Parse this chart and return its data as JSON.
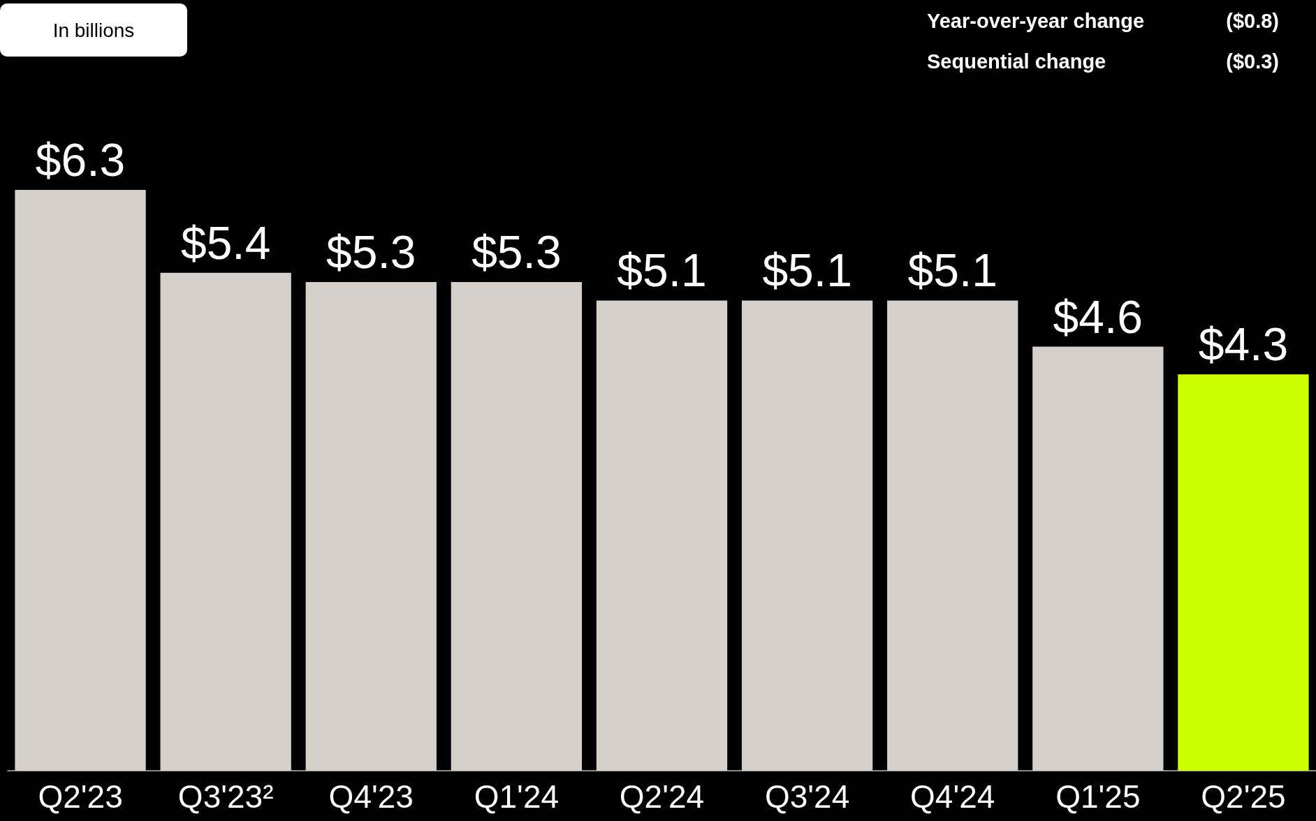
{
  "chart_data": {
    "type": "bar",
    "categories": [
      "Q2'23",
      "Q3'23²",
      "Q4'23",
      "Q1'24",
      "Q2'24",
      "Q3'24",
      "Q4'24",
      "Q1'25",
      "Q2'25"
    ],
    "values": [
      6.3,
      5.4,
      5.3,
      5.3,
      5.1,
      5.1,
      5.1,
      4.6,
      4.3
    ],
    "colors": [
      "#d5d0ca",
      "#d5d0ca",
      "#d5d0ca",
      "#d5d0ca",
      "#d5d0ca",
      "#d5d0ca",
      "#d5d0ca",
      "#d5d0ca",
      "#ccff00"
    ],
    "value_labels": [
      "$6.3",
      "$5.4",
      "$5.3",
      "$5.3",
      "$5.1",
      "$5.1",
      "$5.1",
      "$4.6",
      "$4.3"
    ],
    "annotations": [
      "In billions",
      "Year-over-year change",
      "($0.8)",
      "Sequential change",
      "($0.3)"
    ]
  }
}
